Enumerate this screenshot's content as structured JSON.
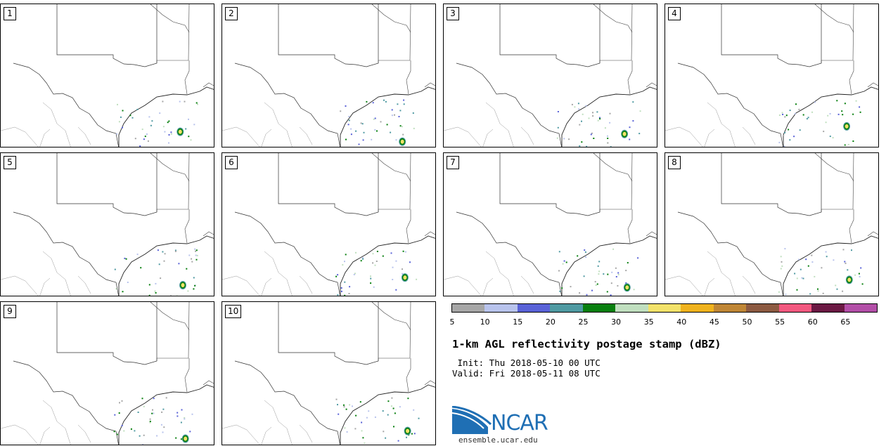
{
  "product": {
    "title": "1-km AGL reflectivity postage stamp (dBZ)",
    "init": " Init: Thu 2018-05-10 00 UTC",
    "valid": "Valid: Fri 2018-05-11 08 UTC"
  },
  "members": [
    "1",
    "2",
    "3",
    "4",
    "5",
    "6",
    "7",
    "8",
    "9",
    "10"
  ],
  "colorbar": {
    "unit": "dBZ",
    "ticks": [
      "5",
      "10",
      "15",
      "20",
      "25",
      "30",
      "35",
      "40",
      "45",
      "50",
      "55",
      "60",
      "65"
    ],
    "colors": [
      "#a6a6a6",
      "#b8c3ec",
      "#5962d7",
      "#4f9aa2",
      "#087f0e",
      "#c0dfbf",
      "#f2e26a",
      "#efb21d",
      "#bf8635",
      "#8c5a41",
      "#f2587f",
      "#6b1943",
      "#b24ea7"
    ]
  },
  "logo": {
    "text": "NCAR",
    "url": "ensemble.ucar.edu",
    "name": "ncar-logo-icon"
  }
}
